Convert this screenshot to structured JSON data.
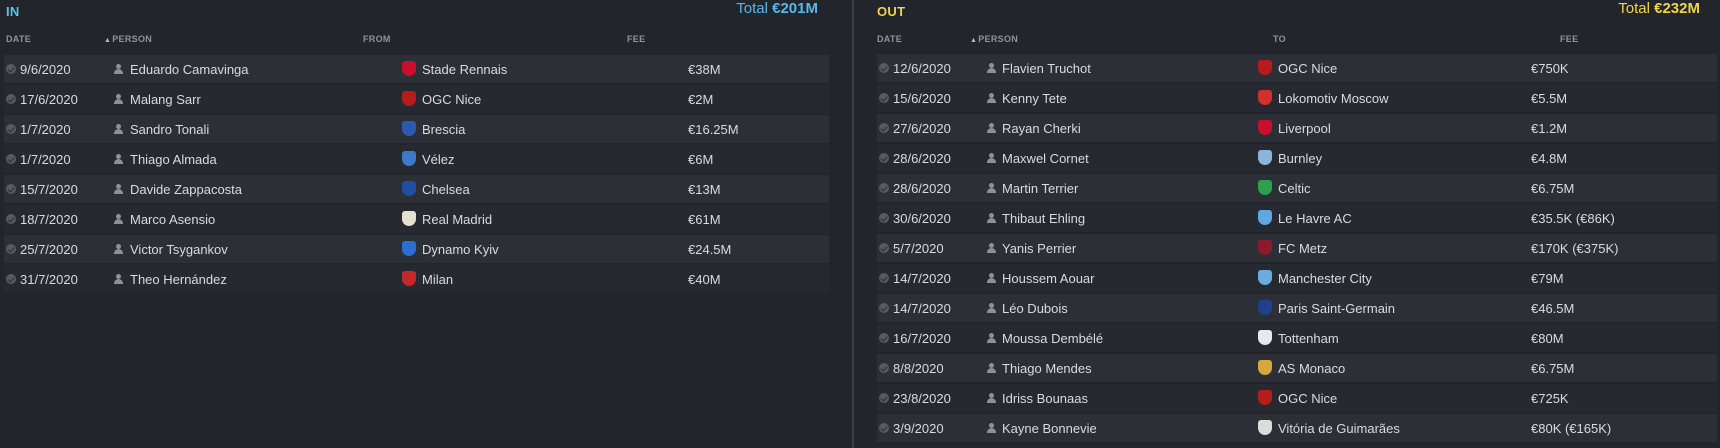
{
  "in": {
    "title": "IN",
    "total_prefix": "Total",
    "total_value": "€201M",
    "headers": {
      "date": "DATE",
      "person": "PERSON",
      "club": "FROM",
      "fee": "FEE"
    },
    "rows": [
      {
        "date": "9/6/2020",
        "person": "Eduardo Camavinga",
        "club": "Stade Rennais",
        "fee": "€38M",
        "crest_color": "#c8102e"
      },
      {
        "date": "17/6/2020",
        "person": "Malang Sarr",
        "club": "OGC Nice",
        "fee": "€2M",
        "crest_color": "#b71c1c"
      },
      {
        "date": "1/7/2020",
        "person": "Sandro Tonali",
        "club": "Brescia",
        "fee": "€16.25M",
        "crest_color": "#2a5bb0"
      },
      {
        "date": "1/7/2020",
        "person": "Thiago Almada",
        "club": "Vélez",
        "fee": "€6M",
        "crest_color": "#3f79c9"
      },
      {
        "date": "15/7/2020",
        "person": "Davide Zappacosta",
        "club": "Chelsea",
        "fee": "€13M",
        "crest_color": "#1f4fa3"
      },
      {
        "date": "18/7/2020",
        "person": "Marco Asensio",
        "club": "Real Madrid",
        "fee": "€61M",
        "crest_color": "#e6e0cf"
      },
      {
        "date": "25/7/2020",
        "person": "Victor Tsygankov",
        "club": "Dynamo Kyiv",
        "fee": "€24.5M",
        "crest_color": "#2d6fd1"
      },
      {
        "date": "31/7/2020",
        "person": "Theo Hernández",
        "club": "Milan",
        "fee": "€40M",
        "crest_color": "#c62828"
      }
    ]
  },
  "out": {
    "title": "OUT",
    "total_prefix": "Total",
    "total_value": "€232M",
    "headers": {
      "date": "DATE",
      "person": "PERSON",
      "club": "TO",
      "fee": "FEE"
    },
    "rows": [
      {
        "date": "12/6/2020",
        "person": "Flavien Truchot",
        "club": "OGC Nice",
        "fee": "€750K",
        "crest_color": "#b71c1c"
      },
      {
        "date": "15/6/2020",
        "person": "Kenny Tete",
        "club": "Lokomotiv Moscow",
        "fee": "€5.5M",
        "crest_color": "#d32f2f"
      },
      {
        "date": "27/6/2020",
        "person": "Rayan Cherki",
        "club": "Liverpool",
        "fee": "€1.2M",
        "crest_color": "#c8102e"
      },
      {
        "date": "28/6/2020",
        "person": "Maxwel Cornet",
        "club": "Burnley",
        "fee": "€4.8M",
        "crest_color": "#8ab5d8"
      },
      {
        "date": "28/6/2020",
        "person": "Martin Terrier",
        "club": "Celtic",
        "fee": "€6.75M",
        "crest_color": "#2e9e4f"
      },
      {
        "date": "30/6/2020",
        "person": "Thibaut Ehling",
        "club": "Le Havre AC",
        "fee": "€35.5K (€86K)",
        "crest_color": "#5fa8df"
      },
      {
        "date": "5/7/2020",
        "person": "Yanis Perrier",
        "club": "FC Metz",
        "fee": "€170K (€375K)",
        "crest_color": "#8b1a2b"
      },
      {
        "date": "14/7/2020",
        "person": "Houssem Aouar",
        "club": "Manchester City",
        "fee": "€79M",
        "crest_color": "#6cabdd"
      },
      {
        "date": "14/7/2020",
        "person": "Léo Dubois",
        "club": "Paris Saint-Germain",
        "fee": "€46.5M",
        "crest_color": "#1f3f8f"
      },
      {
        "date": "16/7/2020",
        "person": "Moussa Dembélé",
        "club": "Tottenham",
        "fee": "€80M",
        "crest_color": "#e8e8ef"
      },
      {
        "date": "8/8/2020",
        "person": "Thiago Mendes",
        "club": "AS Monaco",
        "fee": "€6.75M",
        "crest_color": "#d4a83a"
      },
      {
        "date": "23/8/2020",
        "person": "Idriss Bounaas",
        "club": "OGC Nice",
        "fee": "€725K",
        "crest_color": "#b71c1c"
      },
      {
        "date": "3/9/2020",
        "person": "Kayne Bonnevie",
        "club": "Vitória de Guimarães",
        "fee": "€80K (€165K)",
        "crest_color": "#dcdcdc"
      }
    ]
  }
}
